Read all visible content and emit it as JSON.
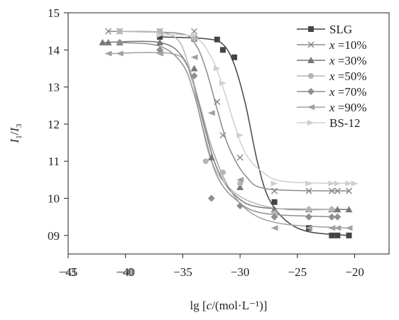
{
  "chart_data": {
    "type": "scatter",
    "ylabel": "I1/I3",
    "ylabel_parts": {
      "main": "I",
      "sub1": "1",
      "sep": "/",
      "main2": "I",
      "sub2": "3"
    },
    "xlabel_parts": {
      "prefix": "lg [",
      "italic": "c",
      "suffix": "/(mol·L⁻¹)]"
    },
    "xlim": [
      -45,
      -17
    ],
    "ylim": [
      8.5,
      15
    ],
    "x_ticks": [
      {
        "value": -45,
        "label": "−45"
      },
      {
        "value": -40,
        "label": "−40"
      },
      {
        "value": -35,
        "label": "−35"
      },
      {
        "value": -30,
        "label": "−30"
      },
      {
        "value": -25,
        "label": "−25"
      },
      {
        "value": -20,
        "label": "−20"
      }
    ],
    "x_ticks_overlay": [
      {
        "value": -45,
        "label": "−3"
      },
      {
        "value": -40,
        "label": "−0"
      }
    ],
    "y_ticks": [
      {
        "value": 9,
        "label": "09"
      },
      {
        "value": 10,
        "label": "10"
      },
      {
        "value": 11,
        "label": "11"
      },
      {
        "value": 12,
        "label": "12"
      },
      {
        "value": 13,
        "label": "13"
      },
      {
        "value": 14,
        "label": "14"
      },
      {
        "value": 15,
        "label": "15"
      }
    ],
    "grid": false,
    "legend_position": "top-right",
    "series": [
      {
        "name": "SLG",
        "marker": "square",
        "color": "#444444",
        "points": [
          [
            -37,
            14.35
          ],
          [
            -34,
            14.3
          ],
          [
            -32,
            14.28
          ],
          [
            -31.5,
            14.0
          ],
          [
            -30.5,
            13.8
          ],
          [
            -27,
            9.9
          ],
          [
            -24,
            9.2
          ],
          [
            -22,
            9.0
          ],
          [
            -21.5,
            9.0
          ],
          [
            -20.5,
            9.0
          ]
        ],
        "curve": [
          [
            -37,
            14.35
          ],
          [
            -33,
            14.3
          ],
          [
            -31.5,
            14.15
          ],
          [
            -30.5,
            13.6
          ],
          [
            -29.5,
            12.5
          ],
          [
            -28.5,
            11.0
          ],
          [
            -27.5,
            10.0
          ],
          [
            -26,
            9.4
          ],
          [
            -24,
            9.1
          ],
          [
            -20.5,
            9.0
          ]
        ]
      },
      {
        "name": "x =10%",
        "marker": "x",
        "color": "#8a8a8a",
        "points": [
          [
            -41.5,
            14.5
          ],
          [
            -40.5,
            14.5
          ],
          [
            -37,
            14.5
          ],
          [
            -34,
            14.5
          ],
          [
            -32,
            12.6
          ],
          [
            -31.5,
            11.7
          ],
          [
            -30,
            11.1
          ],
          [
            -27,
            10.2
          ],
          [
            -24,
            10.2
          ],
          [
            -22,
            10.2
          ],
          [
            -21.5,
            10.2
          ],
          [
            -20.5,
            10.2
          ]
        ],
        "curve": [
          [
            -41.5,
            14.5
          ],
          [
            -35.5,
            14.45
          ],
          [
            -34,
            14.2
          ],
          [
            -33,
            13.5
          ],
          [
            -32,
            12.4
          ],
          [
            -31,
            11.4
          ],
          [
            -29.5,
            10.6
          ],
          [
            -27.5,
            10.25
          ],
          [
            -20.5,
            10.2
          ]
        ]
      },
      {
        "name": "x =30%",
        "marker": "triangle",
        "color": "#777777",
        "points": [
          [
            -42,
            14.2
          ],
          [
            -41.5,
            14.2
          ],
          [
            -40.5,
            14.2
          ],
          [
            -37,
            14.2
          ],
          [
            -34,
            13.5
          ],
          [
            -32.5,
            11.1
          ],
          [
            -30,
            10.3
          ],
          [
            -27,
            9.7
          ],
          [
            -24,
            9.7
          ],
          [
            -22,
            9.7
          ],
          [
            -21.5,
            9.7
          ],
          [
            -20.5,
            9.7
          ]
        ],
        "curve": [
          [
            -42,
            14.2
          ],
          [
            -37,
            14.2
          ],
          [
            -35,
            13.8
          ],
          [
            -34,
            13.0
          ],
          [
            -33,
            11.8
          ],
          [
            -32,
            10.8
          ],
          [
            -30.5,
            10.1
          ],
          [
            -28,
            9.75
          ],
          [
            -20.5,
            9.7
          ]
        ]
      },
      {
        "name": "x =50%",
        "marker": "circle",
        "color": "#b5b5b5",
        "points": [
          [
            -40.5,
            14.5
          ],
          [
            -37,
            14.5
          ],
          [
            -34,
            14.3
          ],
          [
            -33,
            11.0
          ],
          [
            -31.5,
            10.7
          ],
          [
            -30,
            10.4
          ],
          [
            -27,
            9.6
          ],
          [
            -24,
            9.7
          ],
          [
            -22,
            9.7
          ]
        ],
        "curve": [
          [
            -40.5,
            14.5
          ],
          [
            -36,
            14.4
          ],
          [
            -34.5,
            13.6
          ],
          [
            -33.5,
            12.2
          ],
          [
            -32.5,
            11.0
          ],
          [
            -31,
            10.3
          ],
          [
            -29,
            9.9
          ],
          [
            -26,
            9.7
          ],
          [
            -22,
            9.7
          ]
        ]
      },
      {
        "name": "x =70%",
        "marker": "diamond",
        "color": "#8f8f8f",
        "points": [
          [
            -40.5,
            14.2
          ],
          [
            -37,
            14.0
          ],
          [
            -34,
            13.3
          ],
          [
            -32.5,
            10.0
          ],
          [
            -30,
            9.8
          ],
          [
            -27,
            9.5
          ],
          [
            -24,
            9.5
          ],
          [
            -22,
            9.5
          ],
          [
            -21.5,
            9.5
          ]
        ],
        "curve": [
          [
            -40.5,
            14.2
          ],
          [
            -37,
            14.1
          ],
          [
            -35,
            13.6
          ],
          [
            -34,
            12.8
          ],
          [
            -33,
            11.6
          ],
          [
            -32,
            10.6
          ],
          [
            -30.5,
            10.0
          ],
          [
            -28,
            9.6
          ],
          [
            -21.5,
            9.5
          ]
        ]
      },
      {
        "name": "x =90%",
        "marker": "triangle-left",
        "color": "#a0a0a0",
        "points": [
          [
            -41.5,
            13.9
          ],
          [
            -40.5,
            13.9
          ],
          [
            -37,
            13.9
          ],
          [
            -34,
            13.8
          ],
          [
            -32.5,
            12.3
          ],
          [
            -30,
            10.5
          ],
          [
            -27,
            9.2
          ],
          [
            -24,
            9.2
          ],
          [
            -22,
            9.2
          ],
          [
            -21.5,
            9.2
          ],
          [
            -20.5,
            9.2
          ]
        ],
        "curve": [
          [
            -41.5,
            13.9
          ],
          [
            -36,
            13.9
          ],
          [
            -34.5,
            13.5
          ],
          [
            -33.5,
            12.5
          ],
          [
            -32.5,
            11.4
          ],
          [
            -31,
            10.3
          ],
          [
            -29,
            9.6
          ],
          [
            -26,
            9.3
          ],
          [
            -20.5,
            9.2
          ]
        ]
      },
      {
        "name": "BS-12",
        "marker": "triangle-right",
        "color": "#cfcfcf",
        "points": [
          [
            -37,
            14.4
          ],
          [
            -34,
            14.4
          ],
          [
            -32,
            13.5
          ],
          [
            -31.5,
            13.1
          ],
          [
            -30,
            11.7
          ],
          [
            -27,
            10.4
          ],
          [
            -24,
            10.4
          ],
          [
            -22,
            10.4
          ],
          [
            -21.5,
            10.4
          ],
          [
            -20.5,
            10.4
          ],
          [
            -20,
            10.4
          ]
        ],
        "curve": [
          [
            -37,
            14.4
          ],
          [
            -34,
            14.35
          ],
          [
            -32.5,
            13.8
          ],
          [
            -31.5,
            13.0
          ],
          [
            -30.5,
            12.0
          ],
          [
            -29.5,
            11.2
          ],
          [
            -28,
            10.7
          ],
          [
            -26,
            10.45
          ],
          [
            -20,
            10.4
          ]
        ]
      }
    ]
  }
}
